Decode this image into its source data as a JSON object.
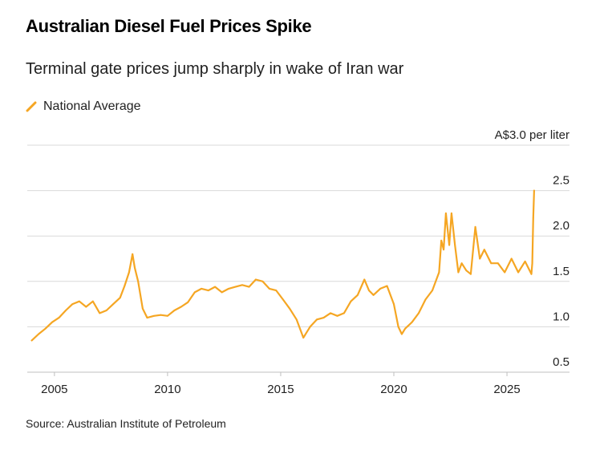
{
  "title": "Australian Diesel Fuel Prices Spike",
  "subtitle": "Terminal gate prices jump sharply in wake of Iran war",
  "source": "Source: Australian Institute of Petroleum",
  "colors": {
    "series": "#f5a623",
    "grid": "#d9d9d9",
    "axis": "#bfbfbf"
  },
  "chart_data": {
    "type": "line",
    "title": "Australian Diesel Fuel Prices Spike",
    "subtitle": "Terminal gate prices jump sharply in wake of Iran war",
    "xlabel": "",
    "ylabel": "A$ per liter",
    "unit_label": "A$3.0 per liter",
    "ylim": [
      0.5,
      3.0
    ],
    "xlim": [
      2003.8,
      2026.7
    ],
    "y_ticks": [
      0.5,
      1.0,
      1.5,
      2.0,
      2.5,
      3.0
    ],
    "y_tick_labels": [
      "0.5",
      "1.0",
      "1.5",
      "2.0",
      "2.5",
      "A$3.0 per liter"
    ],
    "x_ticks": [
      2005,
      2010,
      2015,
      2020,
      2025
    ],
    "x_tick_labels": [
      "2005",
      "2010",
      "2015",
      "2020",
      "2025"
    ],
    "legend": [
      "National Average"
    ],
    "legend_position": "top-left",
    "grid": true,
    "series": [
      {
        "name": "National Average",
        "x": [
          2004.0,
          2004.3,
          2004.6,
          2004.9,
          2005.2,
          2005.5,
          2005.8,
          2006.1,
          2006.4,
          2006.7,
          2007.0,
          2007.3,
          2007.6,
          2007.9,
          2008.1,
          2008.3,
          2008.45,
          2008.55,
          2008.7,
          2008.9,
          2009.1,
          2009.4,
          2009.7,
          2010.0,
          2010.3,
          2010.6,
          2010.9,
          2011.2,
          2011.5,
          2011.8,
          2012.1,
          2012.4,
          2012.7,
          2013.0,
          2013.3,
          2013.6,
          2013.9,
          2014.2,
          2014.5,
          2014.8,
          2015.1,
          2015.4,
          2015.7,
          2016.0,
          2016.3,
          2016.6,
          2016.9,
          2017.2,
          2017.5,
          2017.8,
          2018.1,
          2018.4,
          2018.7,
          2018.9,
          2019.1,
          2019.4,
          2019.7,
          2020.0,
          2020.2,
          2020.35,
          2020.5,
          2020.8,
          2021.1,
          2021.4,
          2021.7,
          2022.0,
          2022.1,
          2022.2,
          2022.3,
          2022.45,
          2022.55,
          2022.7,
          2022.85,
          2023.0,
          2023.2,
          2023.4,
          2023.6,
          2023.8,
          2024.0,
          2024.3,
          2024.6,
          2024.9,
          2025.2,
          2025.5,
          2025.8,
          2026.0,
          2026.08,
          2026.12,
          2026.16,
          2026.2
        ],
        "values": [
          0.85,
          0.92,
          0.98,
          1.05,
          1.1,
          1.18,
          1.25,
          1.28,
          1.22,
          1.28,
          1.15,
          1.18,
          1.25,
          1.32,
          1.45,
          1.6,
          1.8,
          1.65,
          1.5,
          1.2,
          1.1,
          1.12,
          1.13,
          1.12,
          1.18,
          1.22,
          1.27,
          1.38,
          1.42,
          1.4,
          1.44,
          1.38,
          1.42,
          1.44,
          1.46,
          1.44,
          1.52,
          1.5,
          1.42,
          1.4,
          1.3,
          1.2,
          1.08,
          0.88,
          1.0,
          1.08,
          1.1,
          1.15,
          1.12,
          1.15,
          1.28,
          1.35,
          1.52,
          1.4,
          1.35,
          1.42,
          1.45,
          1.25,
          1.0,
          0.92,
          0.98,
          1.05,
          1.15,
          1.3,
          1.4,
          1.6,
          1.95,
          1.85,
          2.25,
          1.9,
          2.25,
          1.9,
          1.6,
          1.7,
          1.62,
          1.58,
          2.1,
          1.75,
          1.85,
          1.7,
          1.7,
          1.6,
          1.75,
          1.6,
          1.72,
          1.62,
          1.58,
          1.7,
          2.2,
          2.5
        ]
      }
    ]
  }
}
